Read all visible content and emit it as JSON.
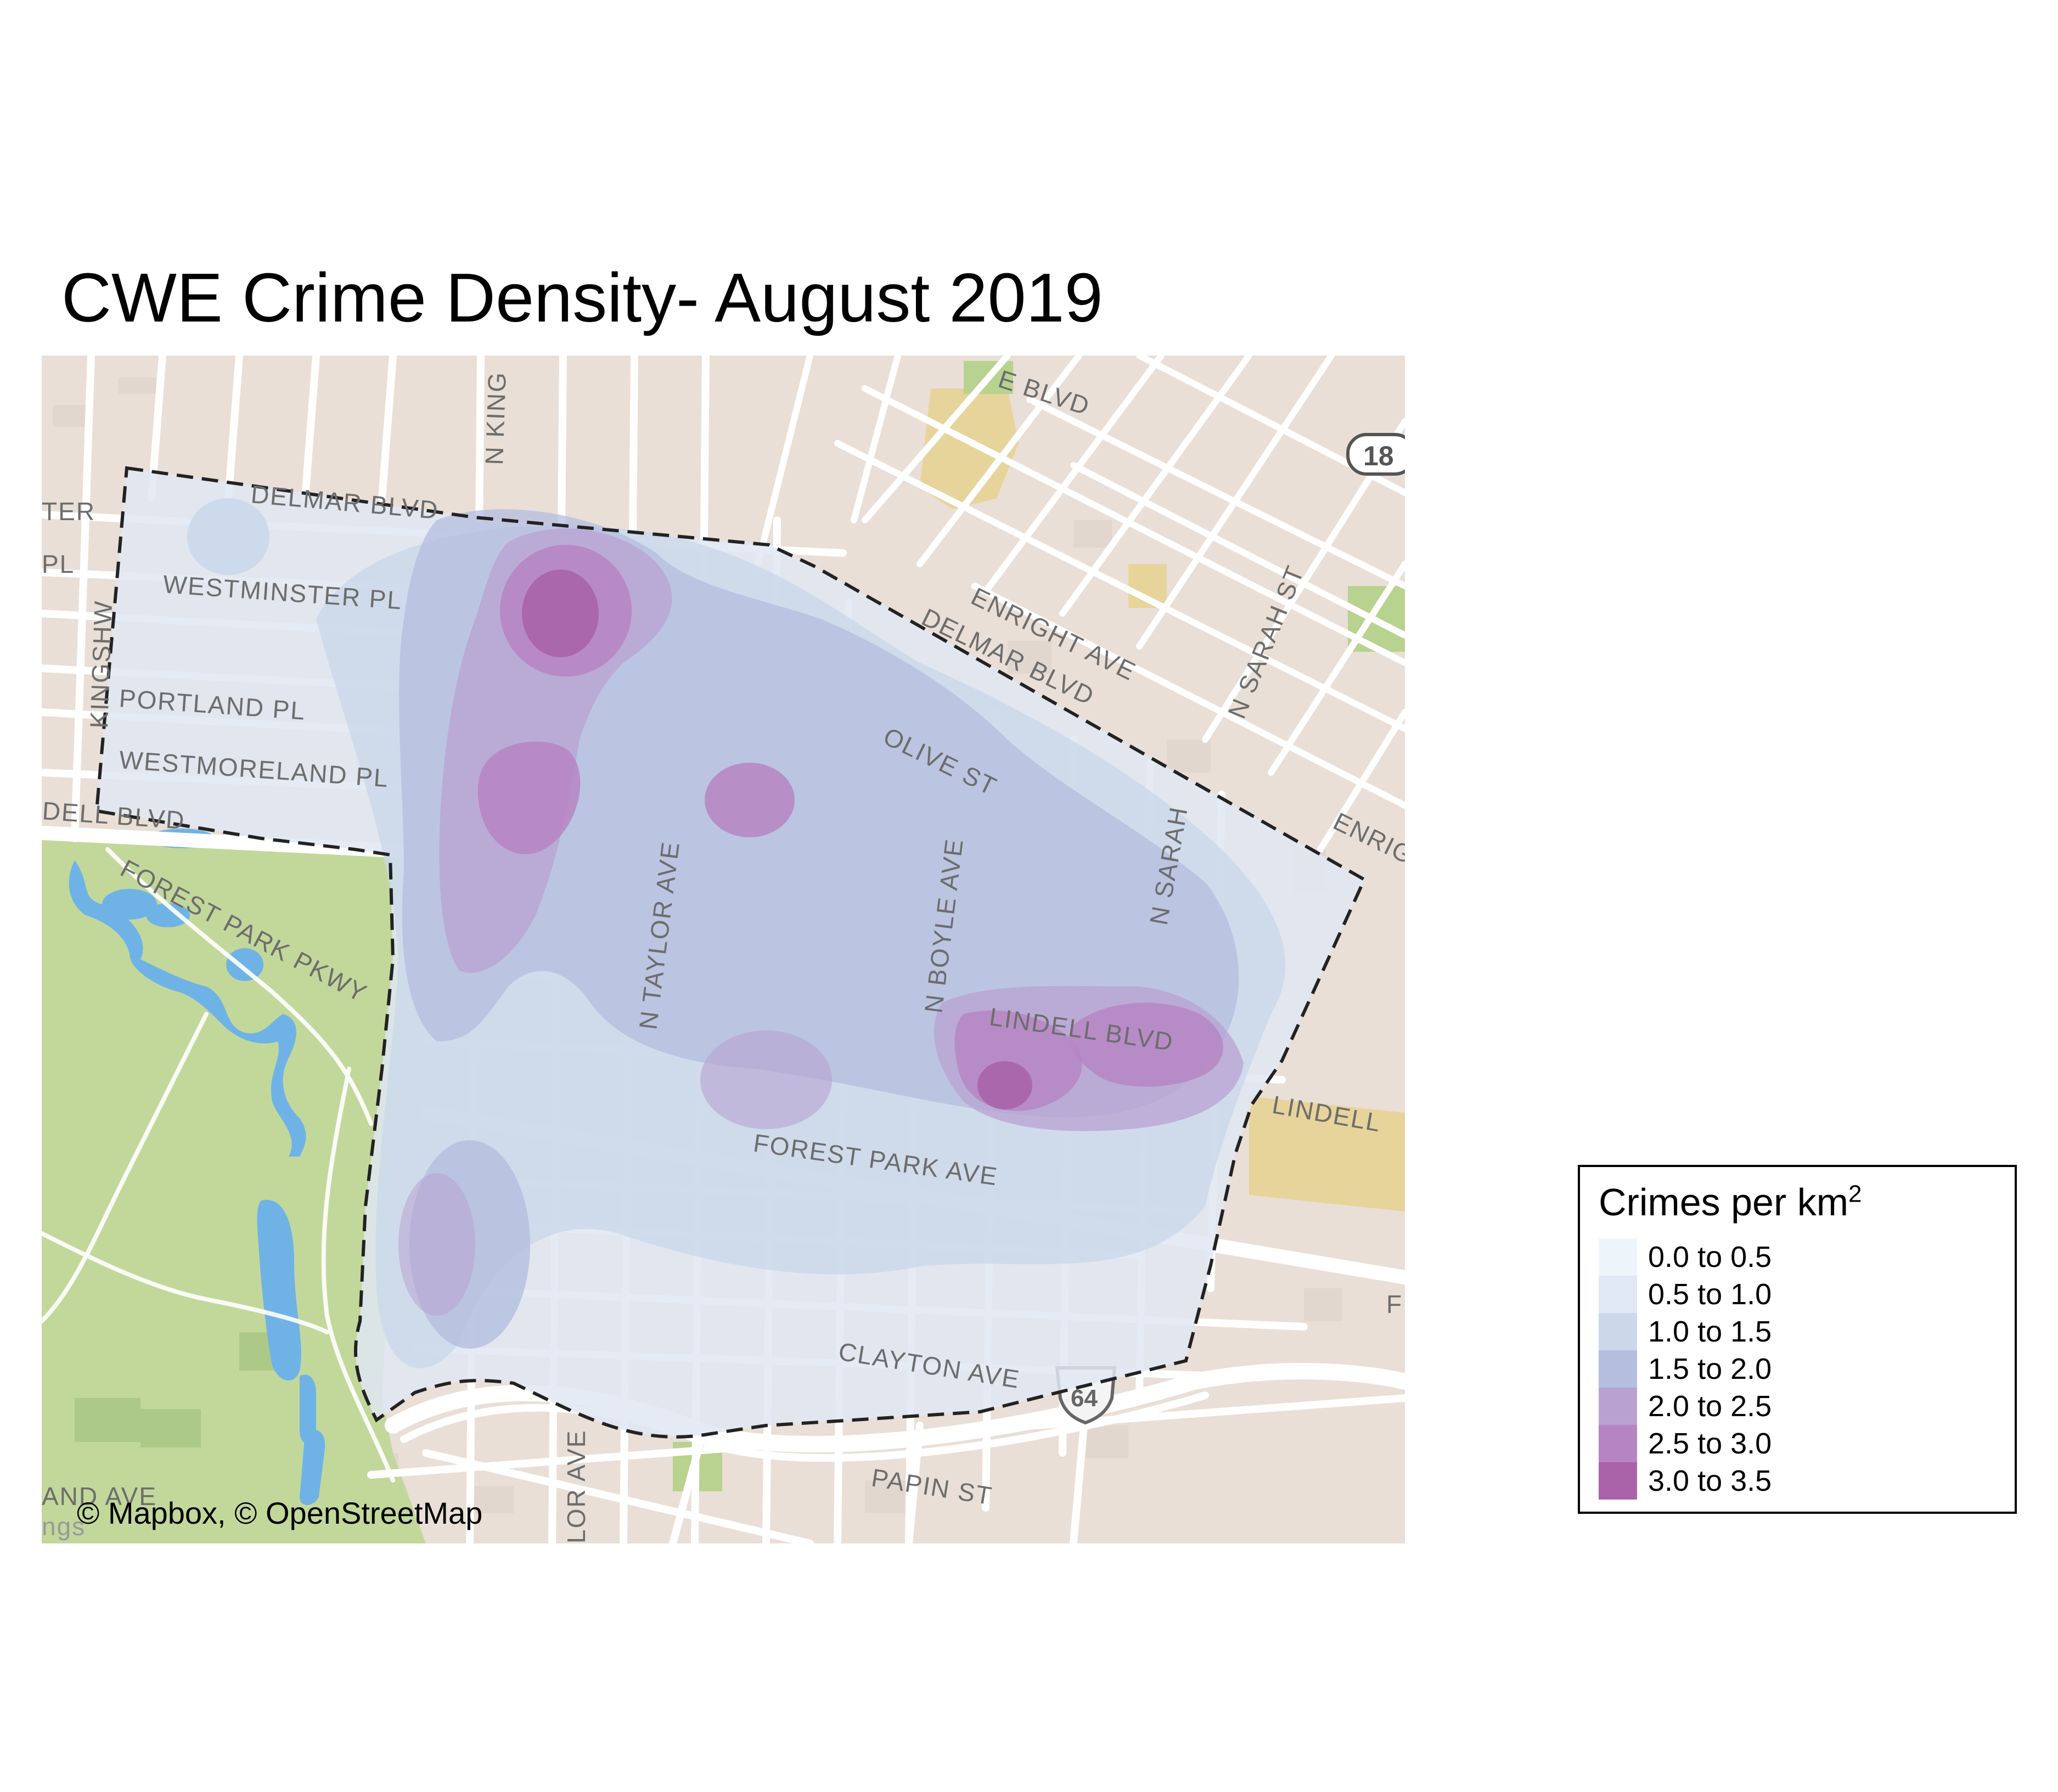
{
  "title": "CWE Crime Density- August 2019",
  "attribution": "© Mapbox, © OpenStreetMap",
  "legend": {
    "title": "Crimes per km",
    "title_superscript": "2",
    "items": [
      {
        "label": "0.0 to 0.5",
        "color": "#eef5fa"
      },
      {
        "label": "0.5 to 1.0",
        "color": "#dfe8f3"
      },
      {
        "label": "1.0 to 1.5",
        "color": "#cad8ea"
      },
      {
        "label": "1.5 to 2.0",
        "color": "#b4bedf"
      },
      {
        "label": "2.0 to 2.5",
        "color": "#b8a2d1"
      },
      {
        "label": "2.5 to 3.0",
        "color": "#b784c2"
      },
      {
        "label": "3.0 to 3.5",
        "color": "#aa63a8"
      }
    ]
  },
  "map_labels": {
    "westminster": "WESTMINSTER PL",
    "portland": "PORTLAND PL",
    "westmoreland": "WESTMORELAND PL",
    "delmar_west": "DELMAR BLVD",
    "delmar_east": "DELMAR BLVD",
    "enright": "ENRIGHT AVE",
    "enright_east": "ENRIG",
    "olive": "OLIVE ST",
    "lindell": "LINDELL BLVD",
    "lindell_east": "LINDELL",
    "lindell_west": "DELL BLVD",
    "forest_park_ave": "FOREST PARK AVE",
    "forest_park_pkwy": "FOREST PARK PKWY",
    "clayton": "CLAYTON AVE",
    "papin": "PAPIN ST",
    "n_taylor": "N TAYLOR AVE",
    "n_boyle": "N BOYLE AVE",
    "n_sarah": "N SARAH ST",
    "n_sarah_south": "N SARAH",
    "n_kings": "N KING",
    "n_kingshwy_west": "KINGSHW",
    "ter": "TER",
    "pl": "PL",
    "blvd_top": "E BLVD",
    "route_shield": "18",
    "interstate": "64",
    "taylor_south": "LOR AVE",
    "and_ave": "AND AVE",
    "ngs": "ngs",
    "f_east": "F"
  },
  "colors": {
    "map_background": "#e9dfd6",
    "street": "#ffffff",
    "park": "#c2d89b",
    "water": "#6fb3e6",
    "campus": "#e6d49a",
    "boundary": "#222222"
  }
}
